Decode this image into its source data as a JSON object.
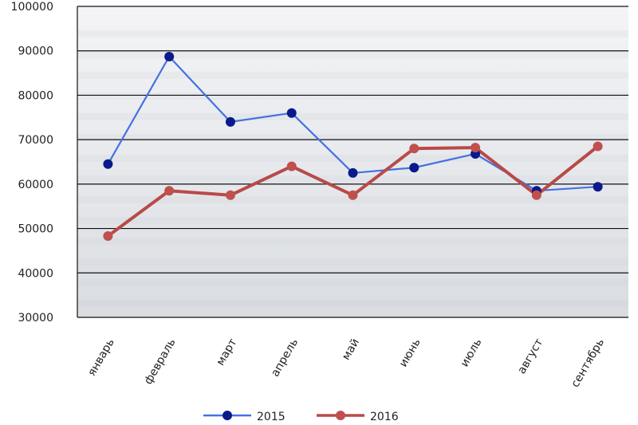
{
  "chart_data": {
    "type": "line",
    "title": "",
    "xlabel": "",
    "ylabel": "",
    "categories": [
      "январь",
      "февраль",
      "март",
      "апрель",
      "май",
      "июнь",
      "июль",
      "август",
      "сентябрь"
    ],
    "ylim": [
      30000,
      100000
    ],
    "yticks": [
      "30000",
      "40000",
      "50000",
      "60000",
      "70000",
      "80000",
      "90000",
      "100000"
    ],
    "grid": true,
    "legend_position": "bottom",
    "series": [
      {
        "name": "2015",
        "color": "#4472e0",
        "marker_color": "#0a1a8c",
        "values": [
          64500,
          88700,
          74000,
          76000,
          62500,
          63700,
          66800,
          58500,
          59400
        ]
      },
      {
        "name": "2016",
        "color": "#b84a48",
        "marker_color": "#c0504d",
        "values": [
          48300,
          58500,
          57500,
          64000,
          57500,
          68000,
          68200,
          57500,
          68500
        ]
      }
    ]
  }
}
